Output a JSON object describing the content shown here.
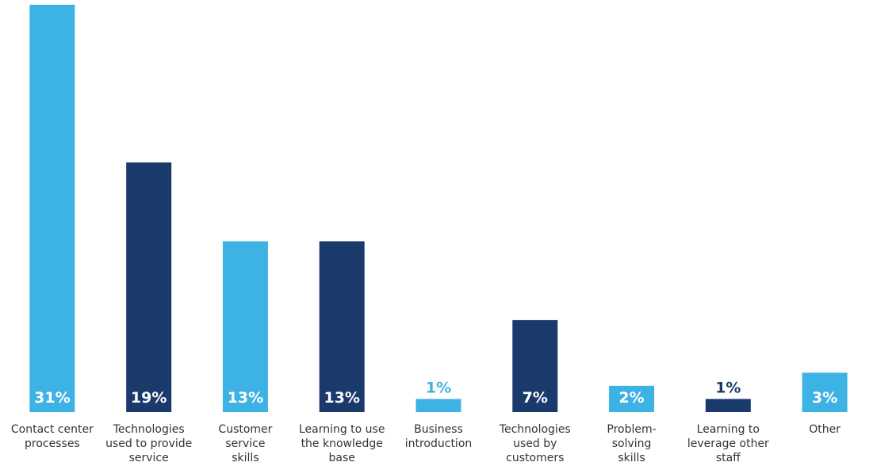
{
  "chart_data": {
    "type": "bar",
    "categories": [
      "Contact center\nprocesses",
      "Technologies\nused to provide\nservice",
      "Customer\nservice\nskills",
      "Learning to use\nthe knowledge\nbase",
      "Business\nintroduction",
      "Technologies\nused by\ncustomers",
      "Problem-\nsolving\nskills",
      "Learning to\nleverage other\nstaff",
      "Other"
    ],
    "values": [
      31,
      19,
      13,
      13,
      1,
      7,
      2,
      1,
      3
    ],
    "value_labels": [
      "31%",
      "19%",
      "13%",
      "13%",
      "1%",
      "7%",
      "2%",
      "1%",
      "3%"
    ],
    "colors": [
      "#3db2e4",
      "#1a3a6b",
      "#3db2e4",
      "#1a3a6b",
      "#3db2e4",
      "#1a3a6b",
      "#3db2e4",
      "#1a3a6b",
      "#3db2e4"
    ],
    "ylim": [
      0,
      31
    ]
  }
}
